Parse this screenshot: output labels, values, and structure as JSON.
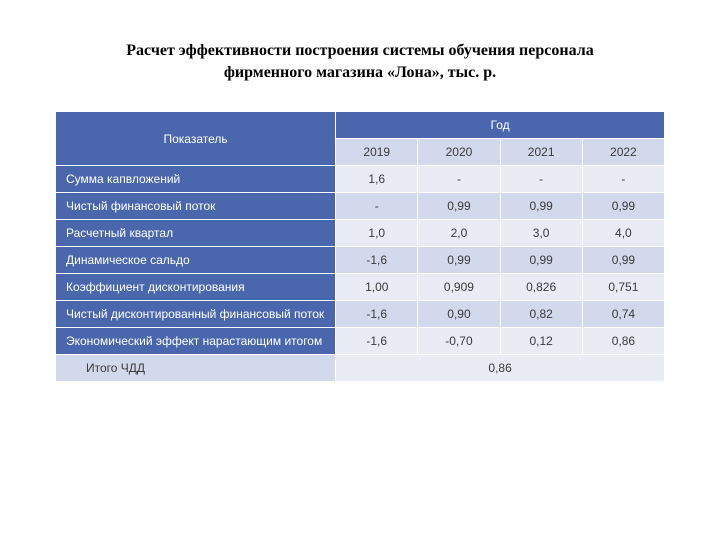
{
  "title_line1": "Расчет эффективности построения системы обучения персонала",
  "title_line2": "фирменного магазина «Лона», тыс. р.",
  "header": {
    "indicator": "Показатель",
    "year": "Год",
    "years": [
      "2019",
      "2020",
      "2021",
      "2022"
    ]
  },
  "rows": [
    {
      "label": "Сумма капвложений",
      "cells": [
        "1,6",
        "-",
        "-",
        "-"
      ]
    },
    {
      "label": "Чистый финансовый поток",
      "cells": [
        "-",
        "0,99",
        "0,99",
        "0,99"
      ]
    },
    {
      "label": "Расчетный квартал",
      "cells": [
        "1,0",
        "2,0",
        "3,0",
        "4,0"
      ]
    },
    {
      "label": "Динамическое сальдо",
      "cells": [
        "-1,6",
        "0,99",
        "0,99",
        "0,99"
      ]
    },
    {
      "label": "Коэффициент дисконтирования",
      "cells": [
        "1,00",
        "0,909",
        "0,826",
        "0,751"
      ]
    },
    {
      "label": "Чистый дисконтированный финансовый поток",
      "cells": [
        "-1,6",
        "0,90",
        "0,82",
        "0,74"
      ]
    },
    {
      "label": "Экономический эффект нарастающим итогом",
      "cells": [
        "-1,6",
        "-0,70",
        "0,12",
        "0,86"
      ]
    }
  ],
  "total": {
    "label": "Итого ЧДД",
    "value": "0,86"
  },
  "style": {
    "header_bg": "#4a66ac",
    "header_fg": "#ffffff",
    "subheader_bg": "#d3d9ec",
    "row_alt_a_bg": "#e9ecf5",
    "row_alt_b_bg": "#d3d9ec",
    "label_col_width_pct": 46,
    "year_col_width_pct": 13.5,
    "title_font": "Times New Roman",
    "title_fontsize_pt": 16,
    "body_fontsize_pt": 12,
    "page_bg": "#ffffff",
    "border_color": "#ffffff"
  }
}
